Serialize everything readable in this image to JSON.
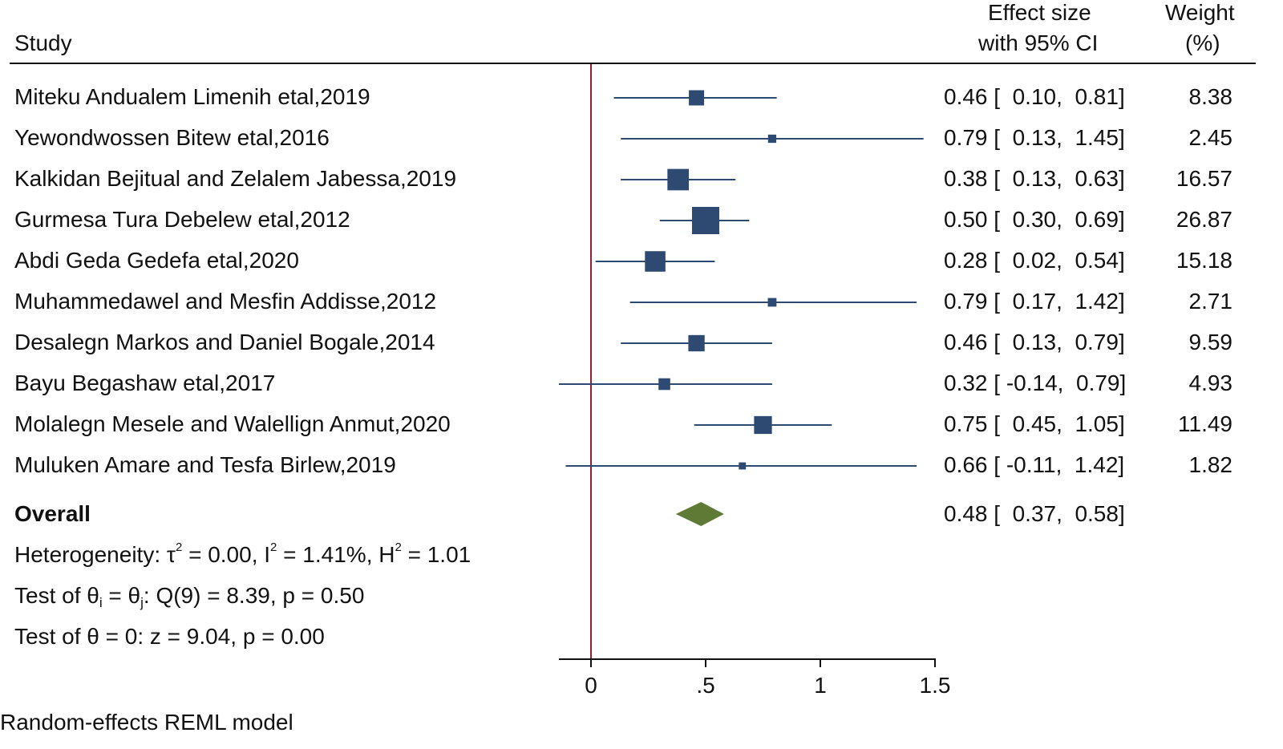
{
  "header": {
    "study": "Study",
    "effect_line1": "Effect size",
    "effect_line2": "with 95% CI",
    "weight_line1": "Weight",
    "weight_line2": "(%)"
  },
  "chart_data": {
    "type": "forest",
    "colors": {
      "box": "#2e4a72",
      "diamond": "#5f7a34",
      "null_line": "#9b1b30",
      "axis": "#111111"
    },
    "xlim": [
      -0.15,
      1.5
    ],
    "xticks": [
      0,
      0.5,
      1,
      1.5
    ],
    "xtick_labels": [
      "0",
      ".5",
      "1",
      "1.5"
    ],
    "null_value": 0,
    "studies": [
      {
        "name": "Miteku Andualem Limenih etal,2019",
        "effect": 0.46,
        "lo": 0.1,
        "hi": 0.81,
        "es_text": "0.46 [  0.10,  0.81]",
        "weight": 8.38,
        "weight_text": "8.38"
      },
      {
        "name": "Yewondwossen Bitew etal,2016",
        "effect": 0.79,
        "lo": 0.13,
        "hi": 1.45,
        "es_text": "0.79 [  0.13,  1.45]",
        "weight": 2.45,
        "weight_text": "2.45"
      },
      {
        "name": "Kalkidan Bejitual and  Zelalem Jabessa,2019",
        "effect": 0.38,
        "lo": 0.13,
        "hi": 0.63,
        "es_text": "0.38 [  0.13,  0.63]",
        "weight": 16.57,
        "weight_text": "16.57"
      },
      {
        "name": "Gurmesa Tura Debelew etal,2012",
        "effect": 0.5,
        "lo": 0.3,
        "hi": 0.69,
        "es_text": "0.50 [  0.30,  0.69]",
        "weight": 26.87,
        "weight_text": "26.87"
      },
      {
        "name": "Abdi Geda Gedefa etal,2020",
        "effect": 0.28,
        "lo": 0.02,
        "hi": 0.54,
        "es_text": "0.28 [  0.02,  0.54]",
        "weight": 15.18,
        "weight_text": "15.18"
      },
      {
        "name": "Muhammedawel and Mesfin Addisse,2012",
        "effect": 0.79,
        "lo": 0.17,
        "hi": 1.42,
        "es_text": "0.79 [  0.17,  1.42]",
        "weight": 2.71,
        "weight_text": "2.71"
      },
      {
        "name": "Desalegn Markos and Daniel Bogale,2014",
        "effect": 0.46,
        "lo": 0.13,
        "hi": 0.79,
        "es_text": "0.46 [  0.13,  0.79]",
        "weight": 9.59,
        "weight_text": "9.59"
      },
      {
        "name": "Bayu Begashaw etal,2017",
        "effect": 0.32,
        "lo": -0.14,
        "hi": 0.79,
        "es_text": "0.32 [ -0.14,  0.79]",
        "weight": 4.93,
        "weight_text": "4.93"
      },
      {
        "name": "Molalegn Mesele and Walellign Anmut,2020",
        "effect": 0.75,
        "lo": 0.45,
        "hi": 1.05,
        "es_text": "0.75 [  0.45,  1.05]",
        "weight": 11.49,
        "weight_text": "11.49"
      },
      {
        "name": "Muluken Amare and Tesfa Birlew,2019",
        "effect": 0.66,
        "lo": -0.11,
        "hi": 1.42,
        "es_text": "0.66 [ -0.11,  1.42]",
        "weight": 1.82,
        "weight_text": "1.82"
      }
    ],
    "overall": {
      "label": "Overall",
      "effect": 0.48,
      "lo": 0.37,
      "hi": 0.58,
      "es_text": "0.48 [  0.37,  0.58]"
    },
    "heterogeneity": {
      "prefix": "Heterogeneity: τ",
      "tau2_value": " = 0.00, I",
      "i2_value": " = 1.41%, H",
      "h2_value": " = 1.01",
      "sup": "2"
    },
    "test_ij": {
      "a": "Test of θ",
      "sub_i": "i",
      "b": " = θ",
      "sub_j": "j",
      "c": ": Q(9) = 8.39, p = 0.50"
    },
    "test_zero": "Test of θ = 0: z = 9.04, p = 0.00",
    "footnote": "Random-effects REML model"
  }
}
